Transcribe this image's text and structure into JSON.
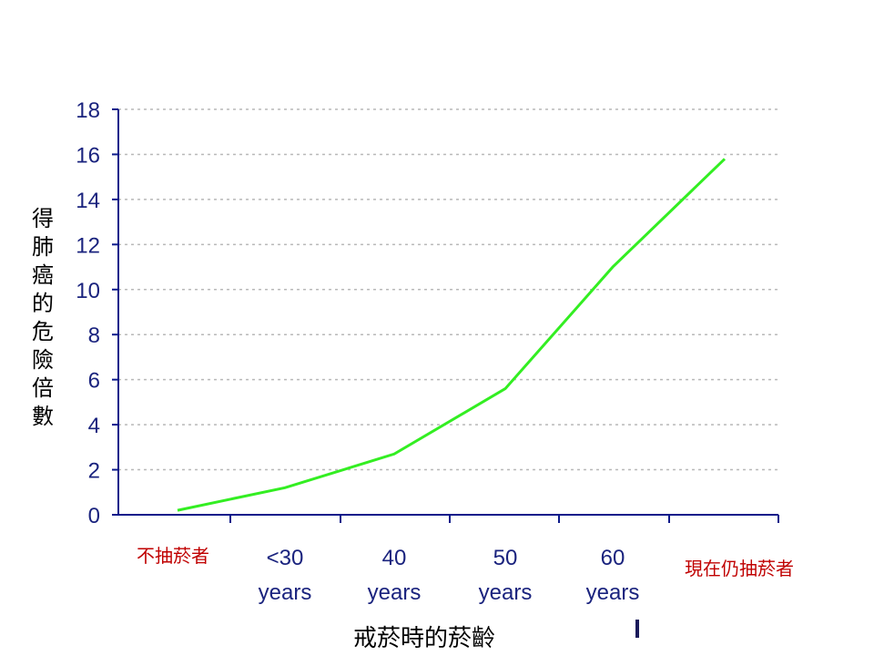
{
  "chart_data": {
    "type": "line",
    "x": [
      "不抽菸者",
      "<30 years",
      "40 years",
      "50 years",
      "60 years",
      "現在仍抽菸者"
    ],
    "tick_labels": [
      {
        "line1": "<30",
        "line2": "years"
      },
      {
        "line1": "40",
        "line2": "years"
      },
      {
        "line1": "50",
        "line2": "years"
      },
      {
        "line1": "60",
        "line2": "years"
      }
    ],
    "series": [
      {
        "values": [
          0.2,
          1.2,
          2.7,
          5.6,
          11.0,
          15.8
        ],
        "color": "#33ee22"
      }
    ],
    "ylabel_chars": [
      "得",
      "肺",
      "癌",
      "的",
      "危",
      "險",
      "倍",
      "數"
    ],
    "xlabel": "戒菸時的菸齡",
    "left_label": "不抽菸者",
    "right_label": "現在仍抽菸者",
    "ylim": [
      0,
      18
    ],
    "yticks": [
      0,
      2,
      4,
      6,
      8,
      10,
      12,
      14,
      16,
      18
    ],
    "grid": true,
    "axis_color": "#0d1a8a",
    "tick_label_color": "#1a237e",
    "side_label_color": "#c00000"
  }
}
